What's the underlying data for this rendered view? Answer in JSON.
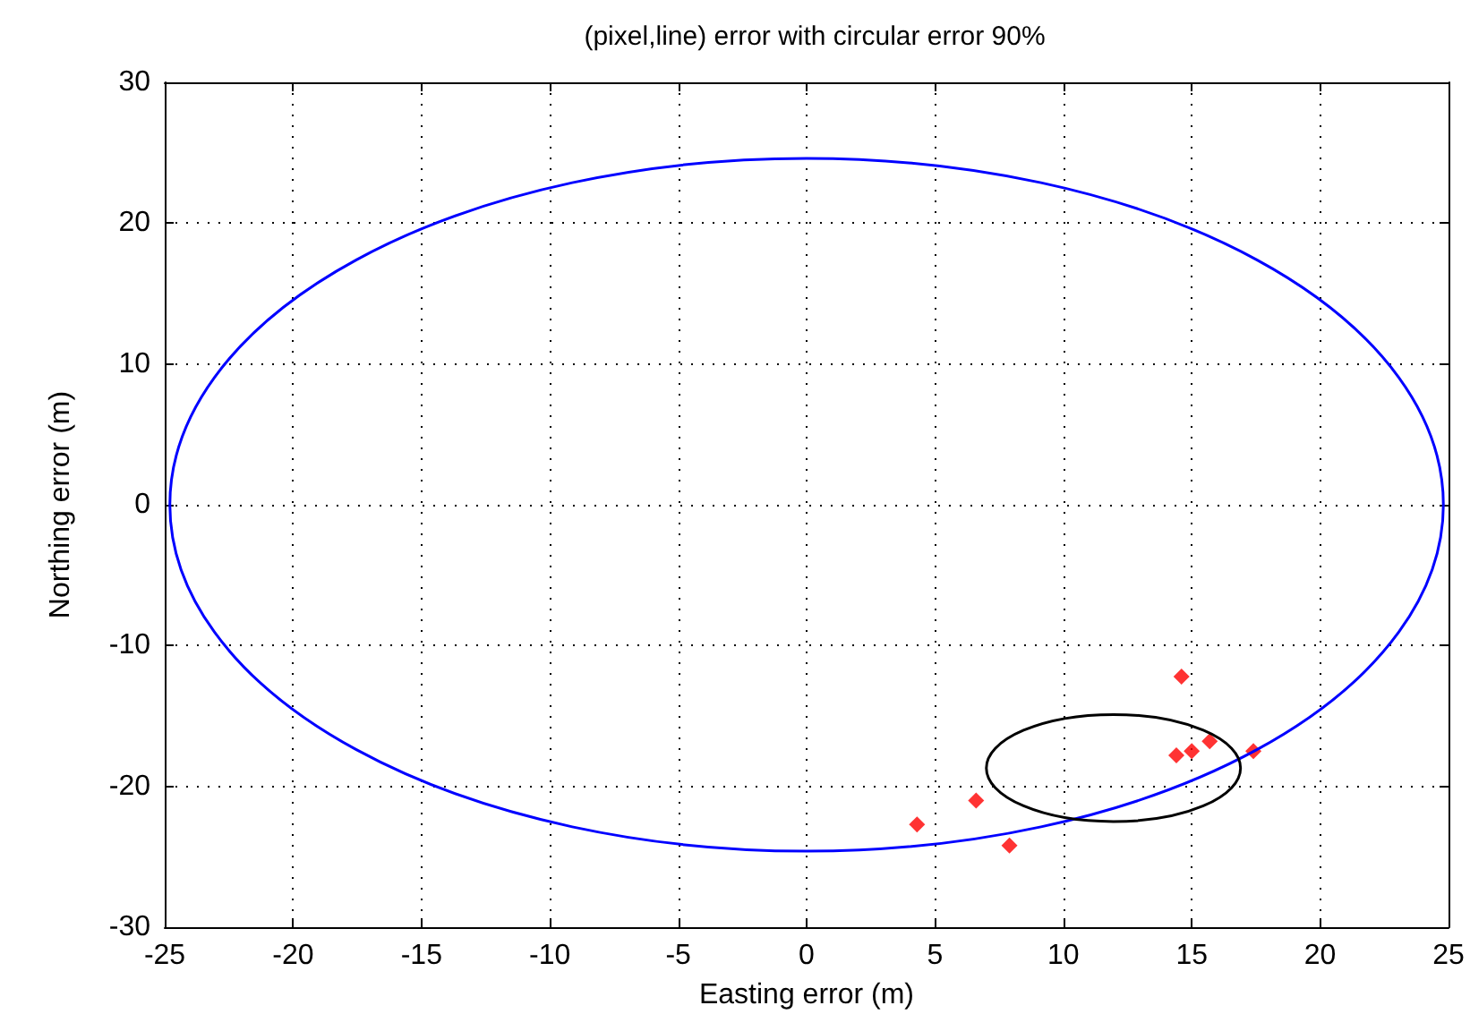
{
  "chart_data": {
    "type": "scatter",
    "title": "(pixel,line) error with circular error 90%",
    "xlabel": "Easting error (m)",
    "ylabel": "Northing error (m)",
    "xlim": [
      -25,
      25
    ],
    "xticks": [
      -25,
      -20,
      -15,
      -10,
      -5,
      0,
      5,
      10,
      15,
      20,
      25
    ],
    "ylim": [
      -30,
      30
    ],
    "yticks": [
      -30,
      -20,
      -10,
      0,
      10,
      20,
      30
    ],
    "grid": true,
    "series": [
      {
        "color": "#ff0000",
        "marker": "diamond",
        "x": [
          14.6,
          14.4,
          15,
          15.7,
          17.4,
          6.6,
          4.3,
          7.9
        ],
        "values": [
          -12.2,
          -17.8,
          -17.5,
          -16.8,
          -17.5,
          -21,
          -22.7,
          -24.2
        ]
      }
    ]
  }
}
